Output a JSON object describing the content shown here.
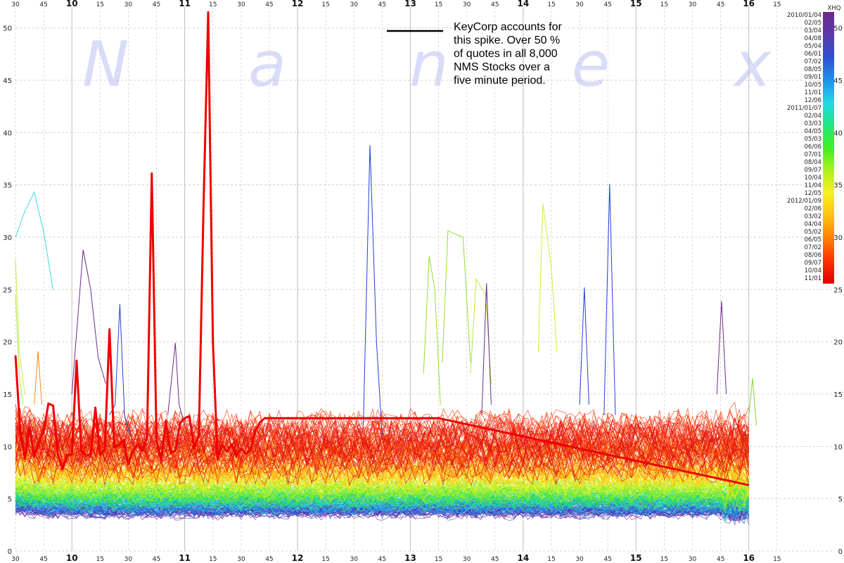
{
  "chart_data": {
    "type": "line",
    "title": "",
    "xlabel": "",
    "ylabel": "",
    "ylim": [
      0,
      52
    ],
    "y_ticks": [
      0,
      5,
      10,
      15,
      20,
      25,
      30,
      35,
      40,
      45,
      50
    ],
    "x_range_minutes": [
      570,
      1005
    ],
    "x_ticks_top": [
      "30",
      "45",
      "10",
      "15",
      "30",
      "45",
      "11",
      "15",
      "30",
      "45",
      "12",
      "15",
      "30",
      "45",
      "13",
      "15",
      "30",
      "45",
      "14",
      "15",
      "30",
      "45",
      "15",
      "15",
      "30",
      "45",
      "16",
      "15"
    ],
    "x_ticks_bottom": [
      "30",
      "45",
      "10",
      "15",
      "30",
      "45",
      "11",
      "15",
      "30",
      "45",
      "12",
      "15",
      "30",
      "45",
      "13",
      "15",
      "30",
      "45",
      "14",
      "15",
      "30",
      "45",
      "15",
      "15",
      "30",
      "45",
      "16",
      "15"
    ],
    "grid": true,
    "watermark": [
      "N",
      "a",
      "n",
      "e",
      "x"
    ],
    "annotation": "KeyCorp accounts for this spike. Over 50 % of quotes in all 8,000 NMS Stocks over a five minute period.",
    "annotation_lines": [
      "KeyCorp accounts for",
      "this spike. Over 50 %",
      "of quotes in all 8,000",
      "NMS Stocks over a",
      "five minute period."
    ],
    "legend": {
      "placement": "right",
      "header": "XHQ",
      "labels": [
        "2010/01/04",
        "02/05",
        "03/04",
        "04/08",
        "05/04",
        "06/01",
        "07/02",
        "08/05",
        "09/01",
        "10/05",
        "11/01",
        "12/06",
        "2011/01/07",
        "02/04",
        "03/03",
        "04/05",
        "05/03",
        "06/06",
        "07/01",
        "08/04",
        "09/07",
        "10/04",
        "11/04",
        "12/05",
        "2012/01/09",
        "02/06",
        "03/02",
        "04/04",
        "05/02",
        "06/05",
        "07/02",
        "08/06",
        "09/07",
        "10/04",
        "11/01"
      ]
    },
    "highlighted_series": {
      "name": "",
      "color": "#ee0000",
      "x": [
        570,
        572.5,
        575,
        577.5,
        580,
        582.5,
        585,
        587.5,
        590,
        592.5,
        595,
        597.5,
        600,
        602.5,
        605,
        607.5,
        610,
        612.5,
        615,
        617.5,
        620,
        622.5,
        625,
        627.5,
        630,
        632.5,
        635,
        637.5,
        640,
        642.5,
        645,
        647.5,
        650,
        652.5,
        655,
        657.5,
        660,
        662.5,
        665,
        667.5,
        670,
        672.5,
        675,
        677.5,
        680,
        682.5,
        685,
        687.5,
        690,
        692.5,
        695,
        697.5,
        700,
        702.5,
        705,
        707.5,
        710,
        712.5,
        715,
        717.5,
        720,
        722.5,
        725,
        727.5,
        730,
        732.5,
        735,
        737.5,
        740,
        742.5,
        745,
        747.5,
        750,
        752.5,
        755,
        757.5,
        760,
        762.5,
        765,
        767.5,
        770,
        772.5,
        775,
        777.5,
        780,
        782.5,
        785,
        787.5,
        790,
        792.5,
        795,
        960
      ],
      "values": [
        18.7,
        11.5,
        8.8,
        11.8,
        9,
        10.4,
        11.4,
        14.1,
        13.9,
        9.3,
        7.8,
        9.2,
        9.2,
        18.2,
        9.6,
        9.1,
        9.3,
        13.7,
        9.2,
        9.7,
        21.2,
        9.9,
        10.1,
        10.6,
        8.3,
        9.6,
        10.2,
        9.6,
        10.8,
        36.1,
        10.6,
        8.7,
        12.4,
        9.4,
        9.6,
        12.2,
        12.7,
        12.9,
        9.8,
        11,
        33,
        51.5,
        20,
        8.8,
        10.2,
        9.5,
        10.2,
        9.1,
        9.8,
        9.3,
        9.6,
        11.5,
        12.3,
        12.7,
        12.7,
        12.7,
        12.7,
        12.7,
        12.7,
        12.7,
        12.7,
        12.7,
        12.7,
        12.7,
        12.7,
        12.7,
        12.7,
        12.7,
        12.7,
        12.7,
        12.7,
        12.7,
        12.7,
        12.7,
        12.7,
        12.7,
        12.7,
        12.7,
        12.7,
        12.7,
        12.7,
        12.7,
        12.7,
        12.7,
        12.7,
        12.7,
        12.7,
        12.7,
        12.7,
        12.7,
        12.7,
        6.3
      ]
    },
    "background_series": [
      {
        "color": "#3ad8e8",
        "x": [
          570,
          575,
          580,
          585,
          590
        ],
        "values": [
          30,
          32.5,
          34.3,
          30.5,
          25
        ]
      },
      {
        "color": "#6a2a8a",
        "x": [
          600,
          603,
          606,
          610,
          614,
          618
        ],
        "values": [
          15,
          22,
          28.8,
          25,
          18.5,
          16
        ]
      },
      {
        "color": "#2040d8",
        "x": [
          620,
          623,
          625.5,
          628,
          631
        ],
        "values": [
          13,
          14,
          23.6,
          13,
          11
        ]
      },
      {
        "color": "#6a2a8a",
        "x": [
          651,
          655,
          657,
          660
        ],
        "values": [
          13,
          19.9,
          14,
          12
        ]
      },
      {
        "color": "#2040d8",
        "x": [
          755,
          758.5,
          762,
          765
        ],
        "values": [
          12,
          38.8,
          20,
          11
        ]
      },
      {
        "color": "#90e030",
        "x": [
          787,
          790,
          793,
          796
        ],
        "values": [
          17,
          28.2,
          25,
          14
        ]
      },
      {
        "color": "#90e030",
        "x": [
          797,
          800,
          808,
          812
        ],
        "values": [
          18,
          30.6,
          30,
          18
        ]
      },
      {
        "color": "#b8e83a",
        "x": [
          812,
          815,
          820,
          823
        ],
        "values": [
          17,
          26,
          24.5,
          16
        ]
      },
      {
        "color": "#6a2a8a",
        "x": [
          818,
          820.5,
          823
        ],
        "values": [
          13,
          25.6,
          14
        ]
      },
      {
        "color": "#d8e840",
        "x": [
          848,
          850.5,
          855,
          858
        ],
        "values": [
          19,
          33.2,
          27,
          19
        ]
      },
      {
        "color": "#2040d8",
        "x": [
          870,
          872.5,
          875
        ],
        "values": [
          14,
          25.2,
          14
        ]
      },
      {
        "color": "#2040d8",
        "x": [
          883,
          886,
          889
        ],
        "values": [
          13,
          35.1,
          13
        ]
      },
      {
        "color": "#6a2a8a",
        "x": [
          943,
          945.5,
          948
        ],
        "values": [
          15,
          23.9,
          15
        ]
      },
      {
        "color": "#ff8800",
        "x": [
          580,
          582,
          584
        ],
        "values": [
          14,
          19.1,
          14
        ]
      },
      {
        "color": "#c8e840",
        "x": [
          570,
          572,
          575
        ],
        "values": [
          27.9,
          19,
          15
        ]
      },
      {
        "color": "#b8e850",
        "x": [
          570,
          572,
          574
        ],
        "values": [
          24.5,
          17,
          14
        ]
      },
      {
        "color": "#80d830",
        "x": [
          960,
          962,
          964
        ],
        "values": [
          13,
          16.5,
          12
        ]
      }
    ],
    "band_layers": [
      {
        "color": "#7030a0",
        "mean": 3.9,
        "spread": 0.6
      },
      {
        "color": "#3040c8",
        "mean": 4.3,
        "spread": 0.7
      },
      {
        "color": "#20a0e0",
        "mean": 4.6,
        "spread": 0.7
      },
      {
        "color": "#20e0d0",
        "mean": 4.9,
        "spread": 0.8
      },
      {
        "color": "#30e040",
        "mean": 5.4,
        "spread": 0.9
      },
      {
        "color": "#a0f020",
        "mean": 6.2,
        "spread": 1.0
      },
      {
        "color": "#f0f020",
        "mean": 7.0,
        "spread": 1.2
      },
      {
        "color": "#ffc010",
        "mean": 8.2,
        "spread": 1.4
      },
      {
        "color": "#ff8000",
        "mean": 9.6,
        "spread": 1.6
      },
      {
        "color": "#ff3000",
        "mean": 10.8,
        "spread": 1.8
      },
      {
        "color": "#e01010",
        "mean": 9.3,
        "spread": 2.0
      }
    ]
  }
}
